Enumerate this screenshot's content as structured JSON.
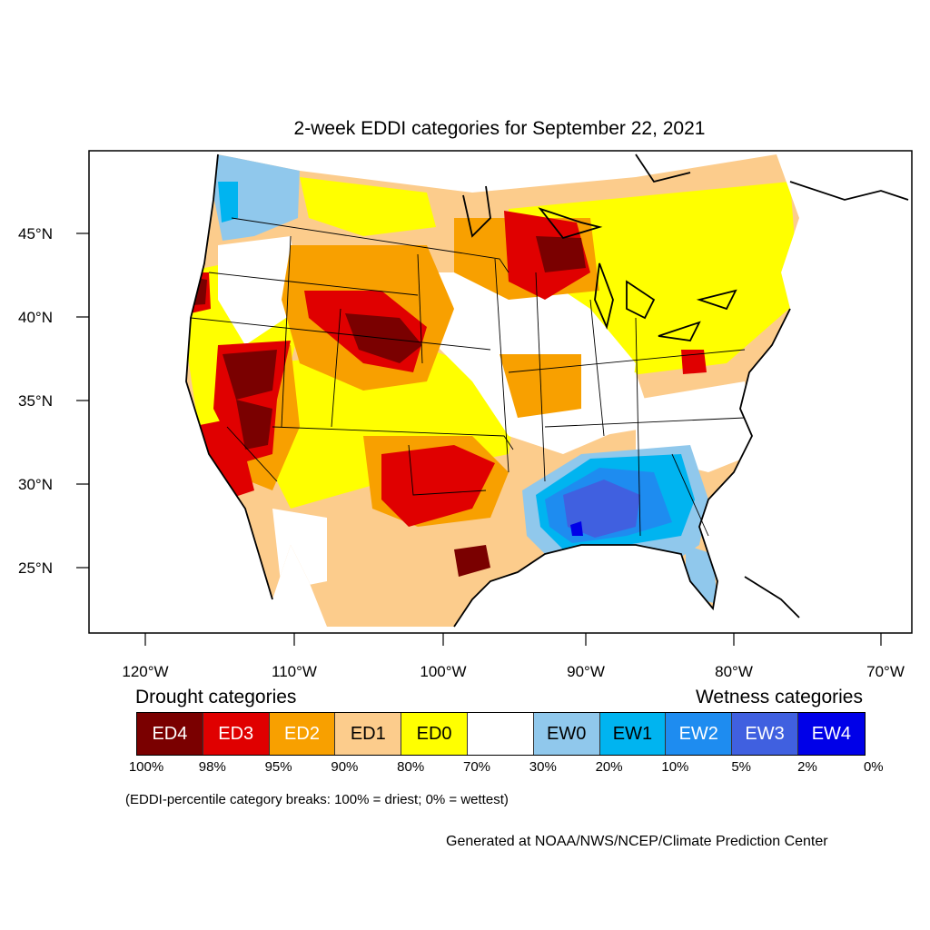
{
  "title": "2-week EDDI categories for September 22, 2021",
  "map": {
    "lat_ticks": [
      "45°N",
      "40°N",
      "35°N",
      "30°N",
      "25°N"
    ],
    "lon_ticks": [
      "120°W",
      "110°W",
      "100°W",
      "90°W",
      "80°W",
      "70°W"
    ],
    "colors": {
      "ED4": "#7a0000",
      "ED3": "#e00000",
      "ED2": "#f8a000",
      "ED1": "#fccc8c",
      "ED0": "#ffff00",
      "neutral": "#ffffff",
      "EW0": "#90c8ec",
      "EW1": "#00b4f0",
      "EW2": "#1e8cf0",
      "EW3": "#4060e0",
      "EW4": "#0000e8"
    }
  },
  "legend": {
    "drought_heading": "Drought categories",
    "wetness_heading": "Wetness categories",
    "categories": [
      {
        "label": "ED4",
        "color": "#7a0000",
        "text_color": "#ffffff"
      },
      {
        "label": "ED3",
        "color": "#e00000",
        "text_color": "#ffffff"
      },
      {
        "label": "ED2",
        "color": "#f8a000",
        "text_color": "#ffffff"
      },
      {
        "label": "ED1",
        "color": "#fccc8c",
        "text_color": "#000000"
      },
      {
        "label": "ED0",
        "color": "#ffff00",
        "text_color": "#000000"
      },
      {
        "label": "",
        "color": "#ffffff",
        "text_color": "#000000"
      },
      {
        "label": "EW0",
        "color": "#90c8ec",
        "text_color": "#000000"
      },
      {
        "label": "EW1",
        "color": "#00b4f0",
        "text_color": "#000000"
      },
      {
        "label": "EW2",
        "color": "#1e8cf0",
        "text_color": "#ffffff"
      },
      {
        "label": "EW3",
        "color": "#4060e0",
        "text_color": "#ffffff"
      },
      {
        "label": "EW4",
        "color": "#0000e8",
        "text_color": "#ffffff"
      }
    ],
    "breaks": [
      "100%",
      "98%",
      "95%",
      "90%",
      "80%",
      "70%",
      "30%",
      "20%",
      "10%",
      "5%",
      "2%",
      "0%"
    ]
  },
  "note": "(EDDI-percentile category breaks: 100% = driest; 0% = wettest)",
  "credit": "Generated at NOAA/NWS/NCEP/Climate Prediction Center"
}
